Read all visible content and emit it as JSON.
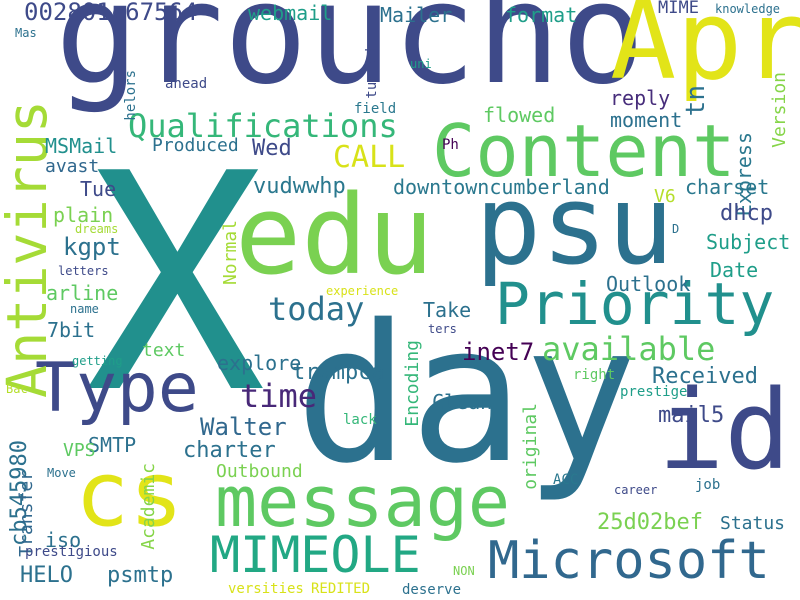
{
  "words": [
    {
      "text": "X",
      "color": "#21908d"
    },
    {
      "text": "day",
      "color": "#2c718e"
    },
    {
      "text": "groucho",
      "color": "#3e4a89"
    },
    {
      "text": "edu",
      "color": "#7ad151"
    },
    {
      "text": "psu",
      "color": "#2c718e"
    },
    {
      "text": "Apr",
      "color": "#e2e418"
    },
    {
      "text": "id",
      "color": "#3e4a89"
    },
    {
      "text": "Content",
      "color": "#5ec962"
    },
    {
      "text": "cs",
      "color": "#e2e418"
    },
    {
      "text": "message",
      "color": "#5ec962"
    },
    {
      "text": "Type",
      "color": "#3e4a89"
    },
    {
      "text": "Antivirus",
      "color": "#a5db36"
    },
    {
      "text": "Priority",
      "color": "#21908d"
    },
    {
      "text": "Microsoft",
      "color": "#31688e"
    },
    {
      "text": "MIMEOLE",
      "color": "#22a884"
    },
    {
      "text": "Qualifications",
      "color": "#35b779"
    },
    {
      "text": "available",
      "color": "#5ec962"
    },
    {
      "text": "today",
      "color": "#2c718e"
    },
    {
      "text": "time",
      "color": "#482878"
    },
    {
      "text": "CALL",
      "color": "#d8e219"
    },
    {
      "text": "002801c67564",
      "color": "#3e4a89"
    },
    {
      "text": "webmail",
      "color": "#1f9e89"
    },
    {
      "text": "Mailer",
      "color": "#2c718e"
    },
    {
      "text": "format",
      "color": "#1f9e89"
    },
    {
      "text": "MIME",
      "color": "#3e4a89"
    },
    {
      "text": "knowledge",
      "color": "#2c718e"
    },
    {
      "text": "reply",
      "color": "#472d7b"
    },
    {
      "text": "moment",
      "color": "#2c718e"
    },
    {
      "text": "flowed",
      "color": "#5ec962"
    },
    {
      "text": "tn",
      "color": "#2c718e"
    },
    {
      "text": "Version",
      "color": "#86d549"
    },
    {
      "text": "Express",
      "color": "#2a788e"
    },
    {
      "text": "Wed",
      "color": "#3e4a89"
    },
    {
      "text": "MSMail",
      "color": "#21908d"
    },
    {
      "text": "Produced",
      "color": "#2c718e"
    },
    {
      "text": "Ph",
      "color": "#440154"
    },
    {
      "text": "avast",
      "color": "#31688e"
    },
    {
      "text": "vudwwhp",
      "color": "#2a788e"
    },
    {
      "text": "downtowncumberland",
      "color": "#2a788e"
    },
    {
      "text": "charset",
      "color": "#2a788e"
    },
    {
      "text": "V6",
      "color": "#b5de2b"
    },
    {
      "text": "dhcp",
      "color": "#3e4a89"
    },
    {
      "text": "Subject",
      "color": "#1f9e89"
    },
    {
      "text": "Date",
      "color": "#1f9e89"
    },
    {
      "text": "Outlook",
      "color": "#2c718e"
    },
    {
      "text": "Tue",
      "color": "#3e4a89"
    },
    {
      "text": "plain",
      "color": "#7ad151"
    },
    {
      "text": "dreams",
      "color": "#a5db36"
    },
    {
      "text": "kgpt",
      "color": "#2c718e"
    },
    {
      "text": "letters",
      "color": "#3e4a89"
    },
    {
      "text": "arline",
      "color": "#5ec962"
    },
    {
      "text": "name",
      "color": "#2c718e"
    },
    {
      "text": "Normal",
      "color": "#a5db36"
    },
    {
      "text": "experience",
      "color": "#d8e219"
    },
    {
      "text": "Take",
      "color": "#2c718e"
    },
    {
      "text": "ters",
      "color": "#3e4a89"
    },
    {
      "text": "inet7",
      "color": "#440154"
    },
    {
      "text": "7bit",
      "color": "#2c718e"
    },
    {
      "text": "getting",
      "color": "#1f9e89"
    },
    {
      "text": "text",
      "color": "#5ec962"
    },
    {
      "text": "explore",
      "color": "#2c718e"
    },
    {
      "text": "trwmpca",
      "color": "#2c718e"
    },
    {
      "text": "Received",
      "color": "#2c718e"
    },
    {
      "text": "mail5",
      "color": "#3e4a89"
    },
    {
      "text": "Encoding",
      "color": "#35b779"
    },
    {
      "text": "Clean",
      "color": "#2c718e"
    },
    {
      "text": "right",
      "color": "#5ec962"
    },
    {
      "text": "prestige",
      "color": "#1f9e89"
    },
    {
      "text": "Bac",
      "color": "#b5de2b"
    },
    {
      "text": "lack",
      "color": "#35b779"
    },
    {
      "text": "Walter",
      "color": "#31688e"
    },
    {
      "text": "cb545980",
      "color": "#2c718e"
    },
    {
      "text": "SMTP",
      "color": "#2c718e"
    },
    {
      "text": "charter",
      "color": "#2c718e"
    },
    {
      "text": "Outbound",
      "color": "#7ad151"
    },
    {
      "text": "original",
      "color": "#5ec962"
    },
    {
      "text": "VPS",
      "color": "#5ec962"
    },
    {
      "text": "Transfer",
      "color": "#31688e"
    },
    {
      "text": "Move",
      "color": "#2c718e"
    },
    {
      "text": "Academic",
      "color": "#86d549"
    },
    {
      "text": "ACC",
      "color": "#2a788e"
    },
    {
      "text": "career",
      "color": "#3e4a89"
    },
    {
      "text": "job",
      "color": "#2c718e"
    },
    {
      "text": "25d02bef",
      "color": "#7ad151"
    },
    {
      "text": "Status",
      "color": "#2c718e"
    },
    {
      "text": "iso",
      "color": "#2c718e"
    },
    {
      "text": "HELO",
      "color": "#2c718e"
    },
    {
      "text": "psmtp",
      "color": "#2c718e"
    },
    {
      "text": "prestigious",
      "color": "#3e4a89"
    },
    {
      "text": "NON",
      "color": "#7ad151"
    },
    {
      "text": "versities",
      "color": "#d8e219"
    },
    {
      "text": "REDITED",
      "color": "#d8e219"
    },
    {
      "text": "deserve",
      "color": "#2c718e"
    },
    {
      "text": "Mas",
      "color": "#2c718e"
    },
    {
      "text": "turned",
      "color": "#3e4a89"
    },
    {
      "text": "uni",
      "color": "#1f9e89"
    },
    {
      "text": "helors",
      "color": "#2c718e"
    },
    {
      "text": "ahead",
      "color": "#3e4a89"
    },
    {
      "text": "field",
      "color": "#2a788e"
    },
    {
      "text": "D",
      "color": "#2c718e"
    }
  ]
}
